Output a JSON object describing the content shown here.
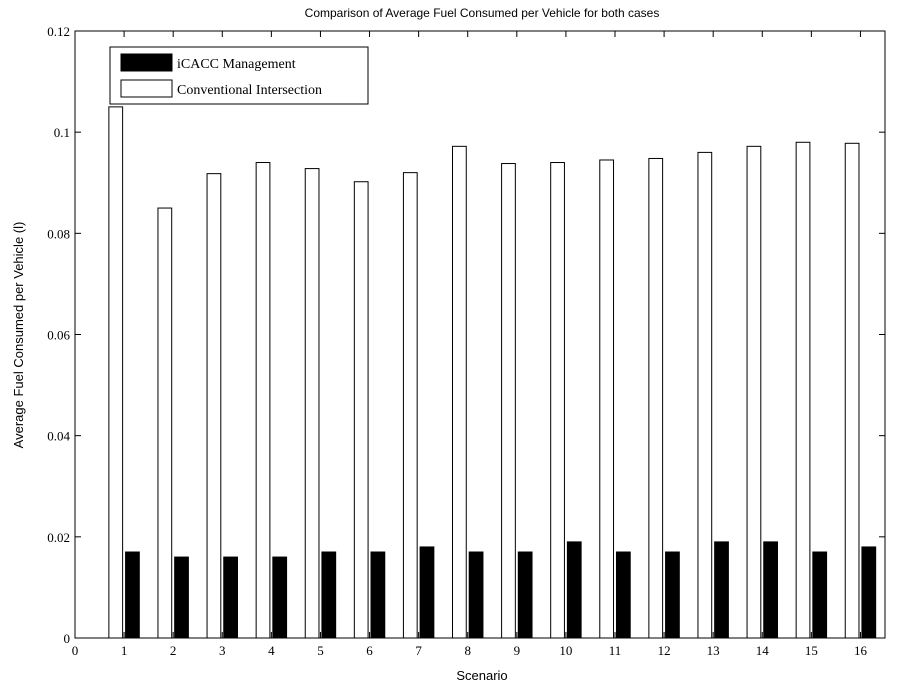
{
  "chart_data": {
    "type": "bar",
    "title": "Comparison of Average Fuel Consumed per Vehicle for both cases",
    "xlabel": "Scenario",
    "ylabel": "Average Fuel Consumed per Vehicle (l)",
    "xlim": [
      0,
      16.5
    ],
    "ylim": [
      0,
      0.12
    ],
    "x_ticks": [
      "0",
      "1",
      "2",
      "3",
      "4",
      "5",
      "6",
      "7",
      "8",
      "9",
      "10",
      "11",
      "12",
      "13",
      "14",
      "15",
      "16"
    ],
    "y_ticks": [
      "0",
      "0.02",
      "0.04",
      "0.06",
      "0.08",
      "0.1",
      "0.12"
    ],
    "categories": [
      "1",
      "2",
      "3",
      "4",
      "5",
      "6",
      "7",
      "8",
      "9",
      "10",
      "11",
      "12",
      "13",
      "14",
      "15",
      "16"
    ],
    "series": [
      {
        "name": "iCACC Management",
        "color": "#000000",
        "values": [
          0.017,
          0.016,
          0.016,
          0.016,
          0.017,
          0.017,
          0.018,
          0.017,
          0.017,
          0.019,
          0.017,
          0.017,
          0.019,
          0.019,
          0.017,
          0.018
        ]
      },
      {
        "name": "Conventional Intersection",
        "color": "#ffffff",
        "values": [
          0.105,
          0.085,
          0.0918,
          0.094,
          0.0928,
          0.0902,
          0.092,
          0.0972,
          0.0938,
          0.094,
          0.0945,
          0.0948,
          0.096,
          0.0972,
          0.098,
          0.0978
        ]
      }
    ],
    "grid": false,
    "legend_position": "top-left"
  }
}
